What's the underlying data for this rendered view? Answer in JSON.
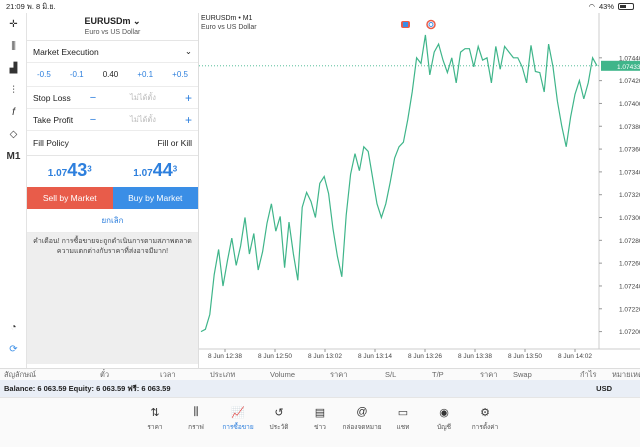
{
  "status": {
    "time": "21:09",
    "date": "พ. 8 มิ.ย.",
    "battery": "43%"
  },
  "toolbar": {
    "items": [
      "crosshair",
      "candles",
      "indicators",
      "sliders",
      "function",
      "objects",
      "M1"
    ],
    "bottom": [
      "chat",
      "mt-logo"
    ]
  },
  "order": {
    "symbol": "EURUSDm",
    "desc": "Euro vs US Dollar",
    "type": "Market Execution",
    "vol": {
      "m1": "-0.5",
      "m2": "-0.1",
      "value": "0.40",
      "p1": "+0.1",
      "p2": "+0.5"
    },
    "sl": {
      "label": "Stop Loss",
      "placeholder": "ไม่ได้ตั้ง"
    },
    "tp": {
      "label": "Take Profit",
      "placeholder": "ไม่ได้ตั้ง"
    },
    "fill": {
      "label": "Fill Policy",
      "value": "Fill or Kill"
    },
    "bid": {
      "a": "1.07",
      "b": "43",
      "c": "3"
    },
    "ask": {
      "a": "1.07",
      "b": "44",
      "c": "3"
    },
    "sell": "Sell by Market",
    "buy": "Buy by Market",
    "cancel": "ยกเลิก",
    "warning": "คำเตือน! การซื้อขายจะถูกดำเนินการตามสภาพตลาด ความแตกต่างกับราคาที่ส่งอาจมีมาก!"
  },
  "chart_header": {
    "symbol": "EURUSDm • M1",
    "desc": "Euro vs US Dollar"
  },
  "chart_data": {
    "type": "line",
    "y_ticks": [
      "1.07440",
      "1.07420",
      "1.07400",
      "1.07380",
      "1.07360",
      "1.07340",
      "1.07320",
      "1.07300",
      "1.07280",
      "1.07260",
      "1.07240",
      "1.07220",
      "1.07200"
    ],
    "x_ticks": [
      "8 Jun 12:38",
      "8 Jun 12:50",
      "8 Jun 13:02",
      "8 Jun 13:14",
      "8 Jun 13:26",
      "8 Jun 13:38",
      "8 Jun 13:50",
      "8 Jun 14:02"
    ],
    "current": "1.07433",
    "ylim": [
      1.0719,
      1.0746
    ],
    "values": [
      1.072,
      1.07202,
      1.07215,
      1.0725,
      1.07272,
      1.0724,
      1.07262,
      1.07282,
      1.07258,
      1.07275,
      1.073,
      1.07268,
      1.07286,
      1.07254,
      1.0727,
      1.07295,
      1.07312,
      1.07288,
      1.07301,
      1.07256,
      1.07296,
      1.07268,
      1.07245,
      1.07309,
      1.07322,
      1.07314,
      1.073,
      1.0733,
      1.07336,
      1.07321,
      1.0729,
      1.07266,
      1.07248,
      1.07302,
      1.07338,
      1.07356,
      1.07341,
      1.07362,
      1.07358,
      1.07335,
      1.07312,
      1.073,
      1.07312,
      1.07331,
      1.07352,
      1.07362,
      1.07366,
      1.07386,
      1.0741,
      1.0744,
      1.07435,
      1.0746,
      1.07425,
      1.07445,
      1.07452,
      1.07438,
      1.07427,
      1.0744,
      1.07418,
      1.07445,
      1.07448,
      1.07448,
      1.07432,
      1.0745,
      1.07438,
      1.0744,
      1.07418,
      1.0745,
      1.0743,
      1.0745,
      1.07445,
      1.0744,
      1.0744,
      1.07432,
      1.07418,
      1.07451,
      1.07428,
      1.07427,
      1.0741,
      1.07452,
      1.07432,
      1.07402,
      1.0738,
      1.07362,
      1.07388,
      1.07408,
      1.0742,
      1.07404,
      1.07418,
      1.0744,
      1.07433
    ]
  },
  "columns": [
    "สัญลักษณ์",
    "ตั๋ว",
    "เวลา",
    "ประเภท",
    "Volume",
    "ราคา",
    "S/L",
    "T/P",
    "ราคา",
    "Swap",
    "กำไร",
    "หมายเหตุ"
  ],
  "balance": {
    "text": "Balance: 6 063.59 Equity: 6 063.59 ฟรี: 6 063.59",
    "currency": "USD"
  },
  "nav": [
    {
      "label": "ราคา",
      "icon": "⇅"
    },
    {
      "label": "กราฟ",
      "icon": "⫼"
    },
    {
      "label": "การซื้อขาย",
      "icon": "📈"
    },
    {
      "label": "ประวัติ",
      "icon": "↺"
    },
    {
      "label": "ข่าว",
      "icon": "▤"
    },
    {
      "label": "กล่องจดหมาย",
      "icon": "@"
    },
    {
      "label": "แชท",
      "icon": "▭"
    },
    {
      "label": "บัญชี",
      "icon": "◉"
    },
    {
      "label": "การตั้งค่า",
      "icon": "⚙"
    }
  ]
}
